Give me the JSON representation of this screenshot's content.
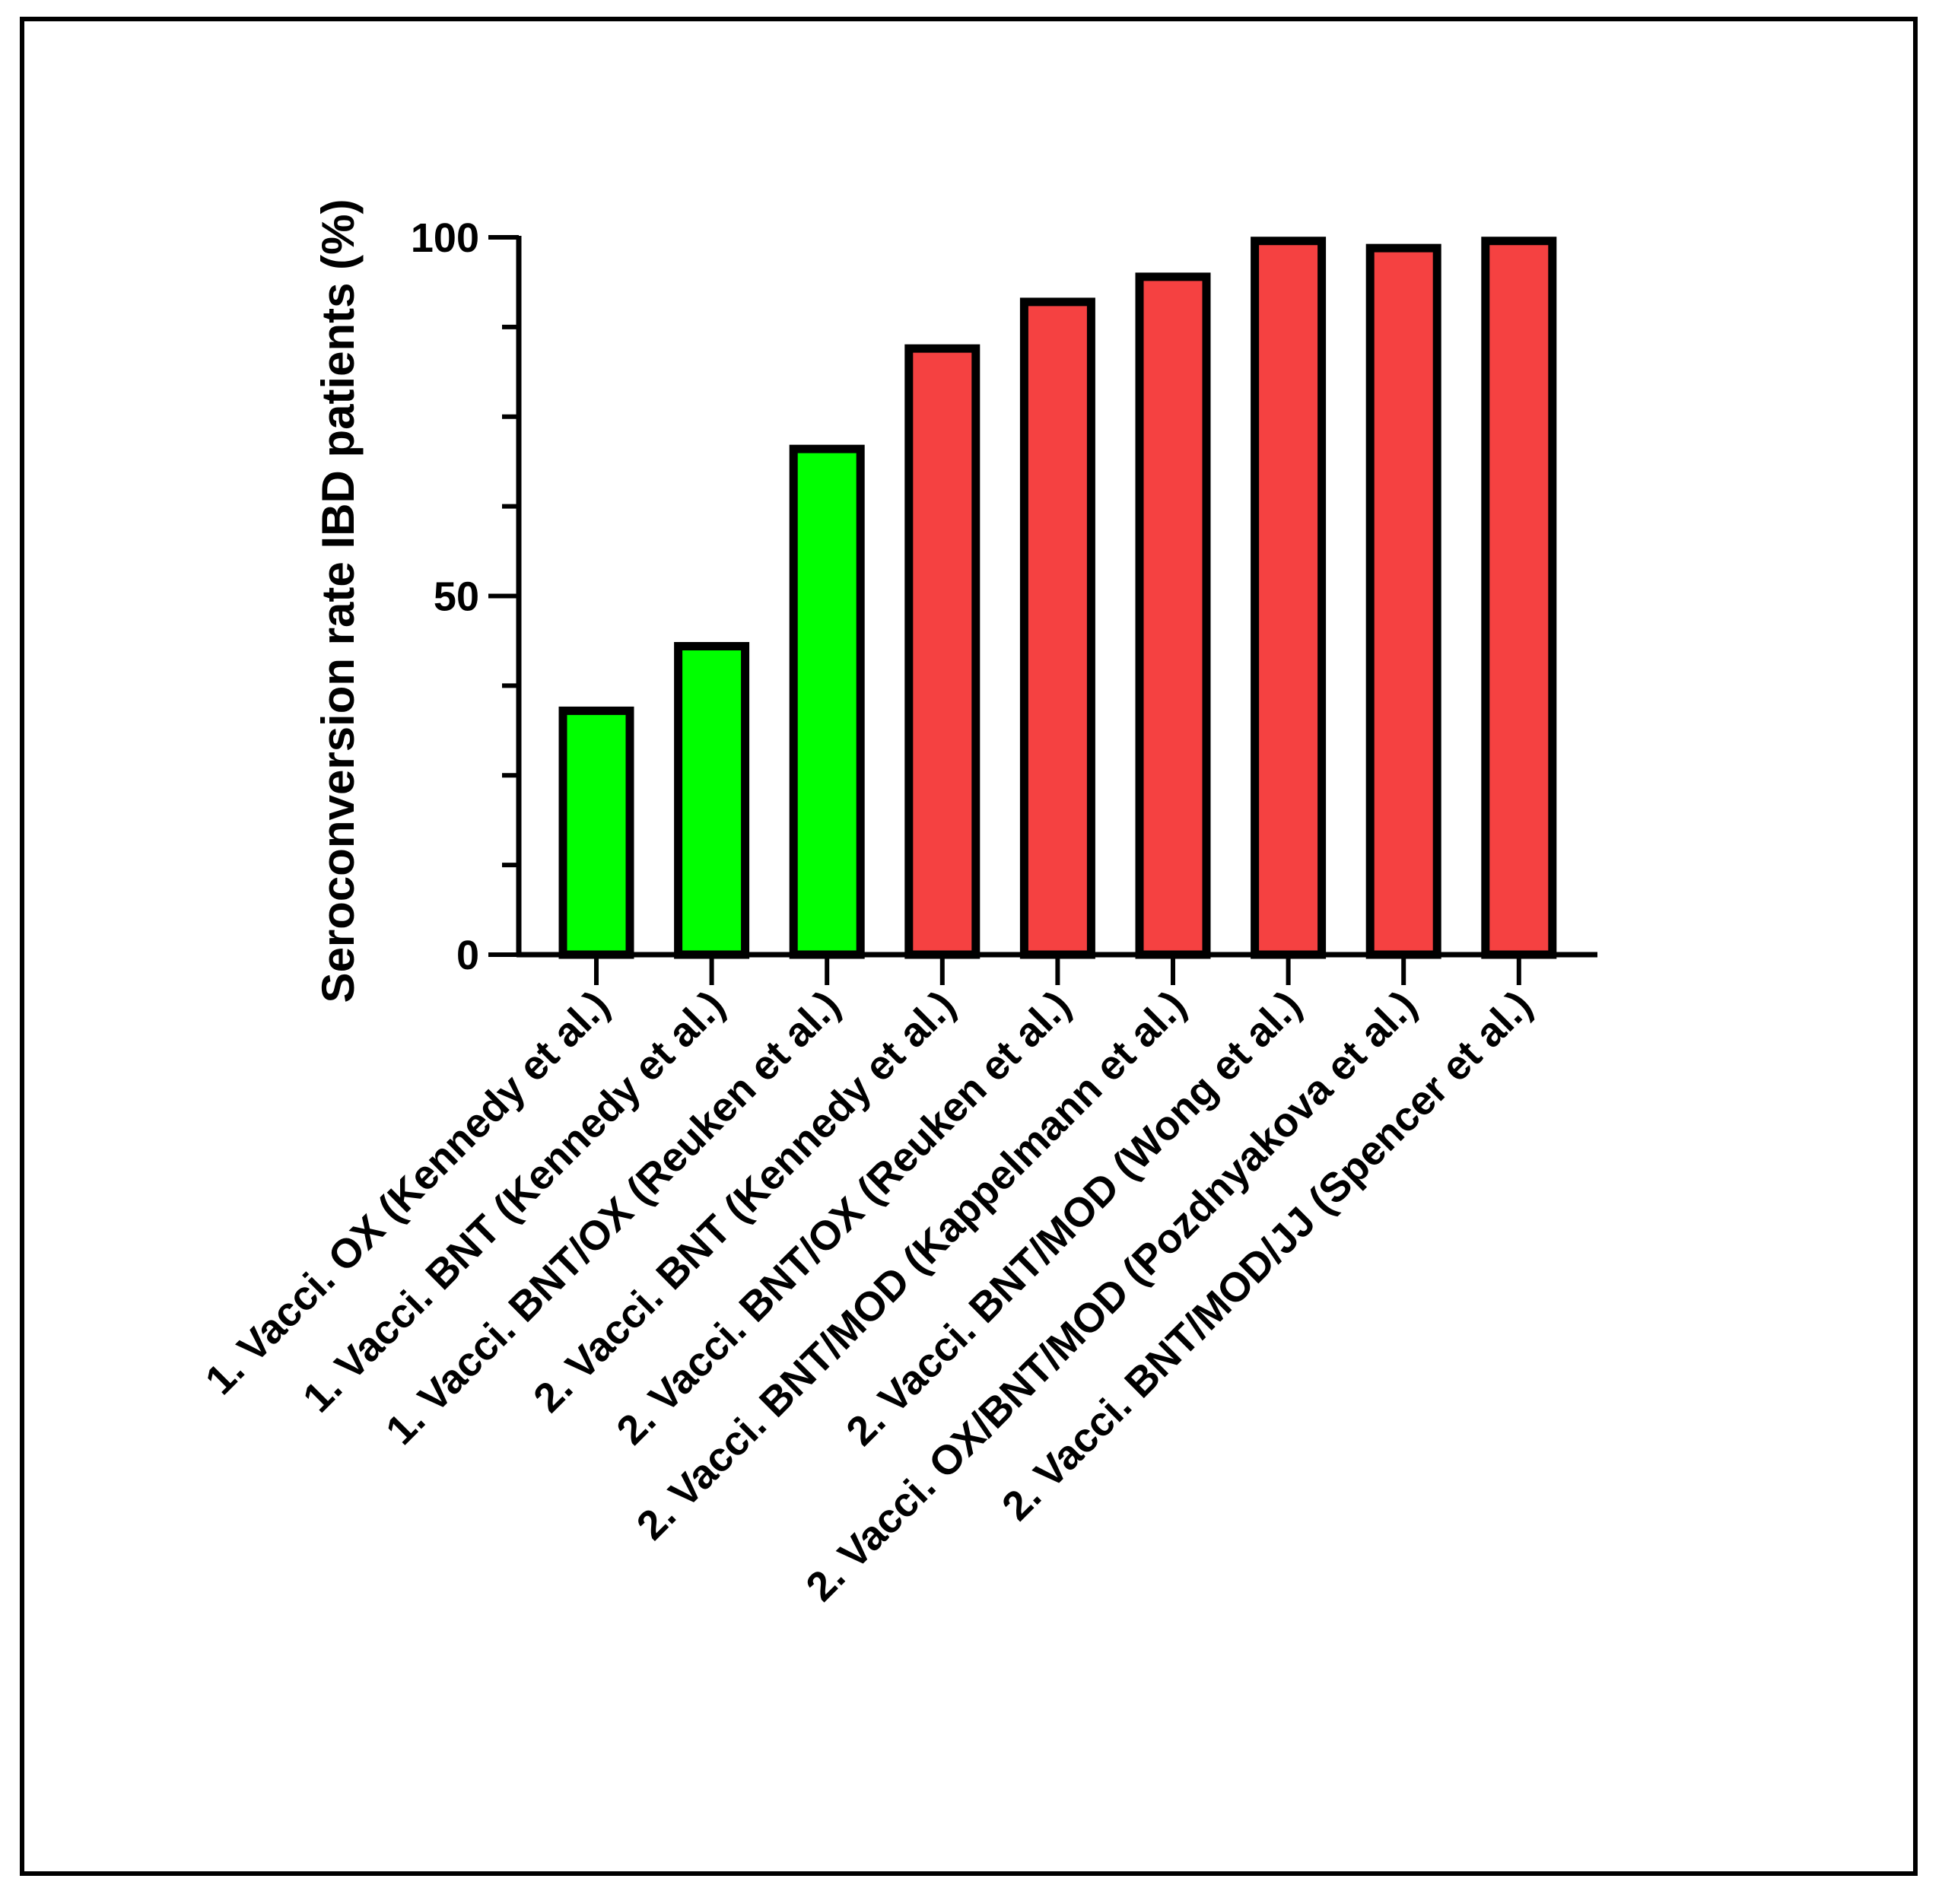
{
  "chart_data": {
    "type": "bar",
    "title": "",
    "xlabel": "",
    "ylabel": "Seroconversion rate IBD patients (%)",
    "ylim": [
      0,
      100
    ],
    "yticks": [
      "0",
      "50",
      "100"
    ],
    "grid": false,
    "legend": "none",
    "categories": [
      "1. Vacci. OX (Kennedy et al.)",
      "1. Vacci. BNT (Kennedy et al.)",
      "1. Vacci. BNT/OX (Reuken et al.)",
      "2. Vacci. BNT (Kennedy et al.)",
      "2. Vacci. BNT/OX (Reuken et al.)",
      "2. Vacci. BNT/MOD (Kappelmann et al.)",
      "2. Vacci. BNT/MOD (Wong et al.)",
      "2. Vacci. OX/BNT/MOD (Pozdnyakova et al.)",
      "2. Vacci. BNT/MOD/JJ (Spencer et al.)"
    ],
    "values": [
      34,
      43,
      70.5,
      84.5,
      91,
      94.5,
      99.5,
      98.5,
      99.5
    ],
    "bar_colors": [
      "#00ff00",
      "#00ff00",
      "#00ff00",
      "#f54141",
      "#f54141",
      "#f54141",
      "#f54141",
      "#f54141",
      "#f54141"
    ],
    "outline_color": "#000000"
  }
}
